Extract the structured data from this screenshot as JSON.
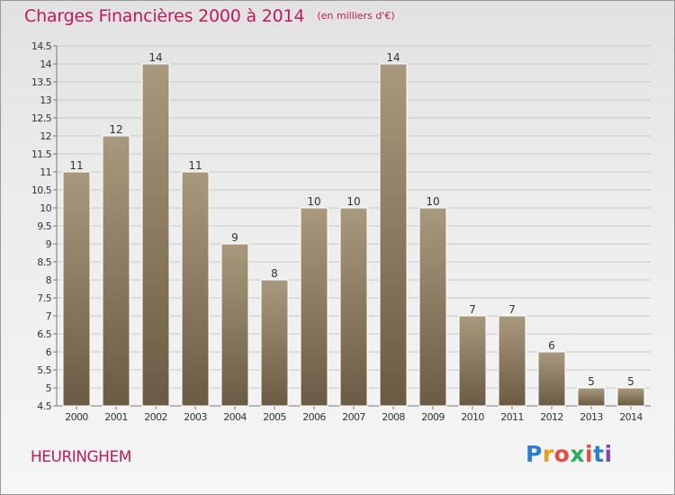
{
  "header": {
    "title": "Charges Financières 2000 à 2014",
    "subtitle": "(en milliers d'€)"
  },
  "commune": "HEURINGHEM",
  "logo": {
    "letters": [
      "P",
      "r",
      "o",
      "x",
      "i",
      "t",
      "i"
    ],
    "colors": [
      "#2a7fd4",
      "#f39c12",
      "#e74c3c",
      "#27ae60",
      "#e74c3c",
      "#2a7fd4",
      "#8e44ad"
    ]
  },
  "colors": {
    "title": "#c2185b",
    "bar_top": "#a8997e",
    "bar_bottom": "#6b5b44",
    "gridline": "#c9c9c9",
    "axis_text": "#333333"
  },
  "chart_data": {
    "type": "bar",
    "title": "Charges Financières 2000 à 2014",
    "subtitle": "(en milliers d'€)",
    "categories": [
      "2000",
      "2001",
      "2002",
      "2003",
      "2004",
      "2005",
      "2006",
      "2007",
      "2008",
      "2009",
      "2010",
      "2011",
      "2012",
      "2013",
      "2014"
    ],
    "values": [
      11,
      12,
      14,
      11,
      9,
      8,
      10,
      10,
      14,
      10,
      7,
      7,
      6,
      5,
      5
    ],
    "value_labels": [
      "11",
      "12",
      "14",
      "11",
      "9",
      "8",
      "10",
      "10",
      "14",
      "10",
      "7",
      "7",
      "6",
      "5",
      "5"
    ],
    "ylim": [
      4.5,
      14.5
    ],
    "yticks": [
      4.5,
      5,
      5.5,
      6,
      6.5,
      7,
      7.5,
      8,
      8.5,
      9,
      9.5,
      10,
      10.5,
      11,
      11.5,
      12,
      12.5,
      13,
      13.5,
      14,
      14.5
    ],
    "ytick_labels": [
      "4.5",
      "5",
      "5.5",
      "6",
      "6.5",
      "7",
      "7.5",
      "8",
      "8.5",
      "9",
      "9.5",
      "10",
      "10.5",
      "11",
      "11.5",
      "12",
      "12.5",
      "13",
      "13.5",
      "14",
      "14.5"
    ],
    "xlabel": "",
    "ylabel": "",
    "grid": true,
    "legend": "none"
  }
}
